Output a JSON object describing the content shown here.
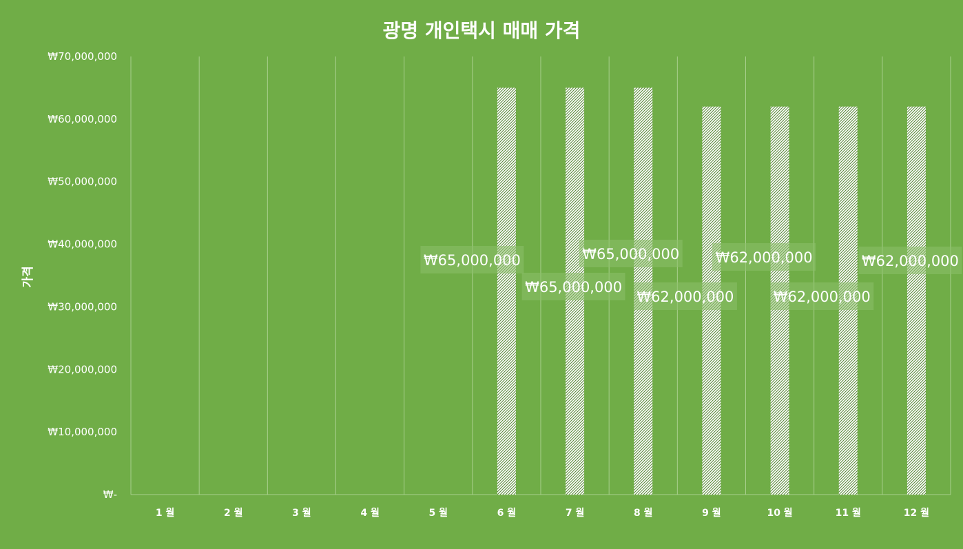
{
  "chart_data": {
    "type": "bar",
    "title": "광명 개인택시 매매 가격",
    "xlabel": "",
    "ylabel": "가격",
    "categories": [
      "1 월",
      "2 월",
      "3 월",
      "4 월",
      "5 월",
      "6 월",
      "7 월",
      "8 월",
      "9 월",
      "10 월",
      "11 월",
      "12 월"
    ],
    "values": [
      null,
      null,
      null,
      null,
      null,
      65000000,
      65000000,
      65000000,
      62000000,
      62000000,
      62000000,
      62000000
    ],
    "data_labels": [
      "",
      "",
      "",
      "",
      "",
      "₩65,000,000",
      "₩65,000,000",
      "₩65,000,000",
      "₩62,000,000",
      "₩62,000,000",
      "₩62,000,000",
      "₩62,000,000"
    ],
    "ylim": [
      0,
      70000000
    ],
    "yticks": [
      0,
      10000000,
      20000000,
      30000000,
      40000000,
      50000000,
      60000000,
      70000000
    ],
    "ytick_labels": [
      "₩-",
      "₩10,000,000",
      "₩20,000,000",
      "₩30,000,000",
      "₩40,000,000",
      "₩50,000,000",
      "₩60,000,000",
      "₩70,000,000"
    ],
    "grid": "vertical",
    "legend": "none",
    "colors": {
      "background": "#70ad47",
      "bar_pattern_fg": "#5a8a3a",
      "bar_pattern_bg": "#ffffff",
      "text": "#ffffff",
      "gridline": "#a9d08e",
      "label_box": "#8cbf6a"
    }
  }
}
